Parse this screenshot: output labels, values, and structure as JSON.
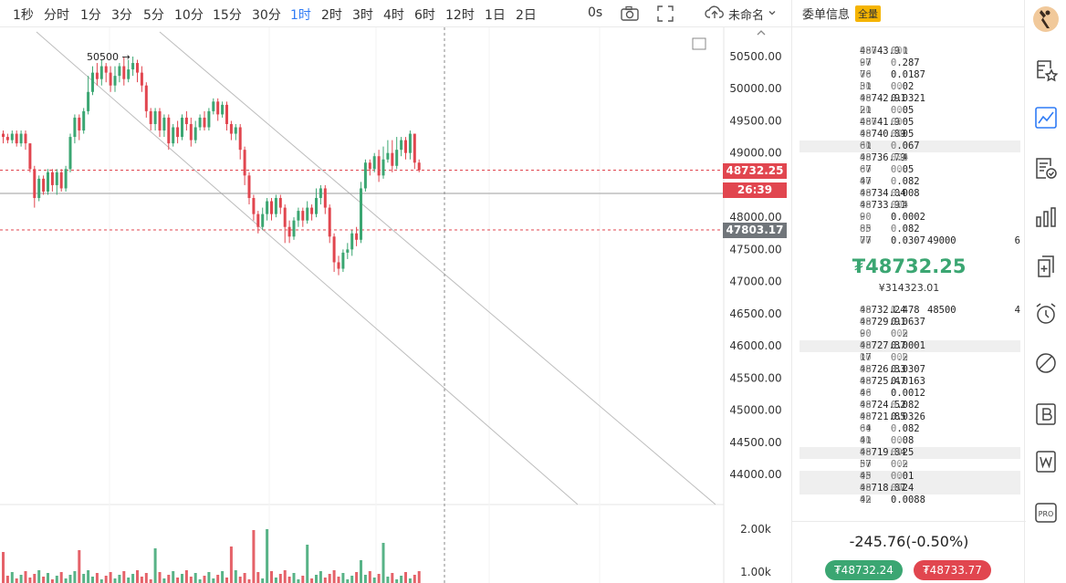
{
  "toolbar": {
    "timeframes": [
      {
        "label": "1秒",
        "active": false
      },
      {
        "label": "分时",
        "active": false
      },
      {
        "label": "1分",
        "active": false
      },
      {
        "label": "3分",
        "active": false
      },
      {
        "label": "5分",
        "active": false
      },
      {
        "label": "10分",
        "active": false
      },
      {
        "label": "15分",
        "active": false
      },
      {
        "label": "30分",
        "active": false
      },
      {
        "label": "1时",
        "active": true
      },
      {
        "label": "2时",
        "active": false
      },
      {
        "label": "3时",
        "active": false
      },
      {
        "label": "4时",
        "active": false
      },
      {
        "label": "6时",
        "active": false
      },
      {
        "label": "12时",
        "active": false
      },
      {
        "label": "1日",
        "active": false
      },
      {
        "label": "2日",
        "active": false
      }
    ],
    "countdown": "0s",
    "layout_name": "未命名",
    "icons": [
      "camera-icon",
      "fullscreen-icon",
      "cloud-upload-icon",
      "chevron-down-icon"
    ]
  },
  "chart": {
    "price_axis_labels": [
      "50500.00",
      "50000.00",
      "49500.00",
      "49000.00",
      "48000.00",
      "47500.00",
      "47000.00",
      "46500.00",
      "46000.00",
      "45500.00",
      "45000.00",
      "44500.00",
      "44000.00"
    ],
    "volume_axis_labels": [
      "2.00k",
      "1.00k"
    ],
    "annotation": "50500 →",
    "current_price_tag": "48732.25",
    "countdown_tag": "26:39",
    "crosshair_price_tag": "47803.17",
    "colors": {
      "up": "#3ba672",
      "down": "#e1464f",
      "crosshair_tag": "#70757a"
    }
  },
  "chart_data": {
    "type": "candlestick",
    "ylim": [
      43700,
      50900
    ],
    "candles": [
      [
        49300,
        49250,
        49350,
        49150
      ],
      [
        49250,
        49200,
        49300,
        49150
      ],
      [
        49200,
        49300,
        49350,
        49150
      ],
      [
        49300,
        49150,
        49350,
        49100
      ],
      [
        49150,
        49300,
        49350,
        49100
      ],
      [
        49300,
        49150,
        49350,
        49050
      ],
      [
        49150,
        48750,
        49150,
        48700
      ],
      [
        48750,
        48300,
        48800,
        48150
      ],
      [
        48300,
        48600,
        48650,
        48250
      ],
      [
        48600,
        48400,
        48650,
        48350
      ],
      [
        48400,
        48700,
        48750,
        48350
      ],
      [
        48700,
        48500,
        48750,
        48400
      ],
      [
        48500,
        48700,
        48750,
        48350
      ],
      [
        48700,
        48450,
        48750,
        48400
      ],
      [
        48450,
        48750,
        48800,
        48400
      ],
      [
        48750,
        49250,
        49300,
        48700
      ],
      [
        49250,
        49550,
        49600,
        49150
      ],
      [
        49550,
        49350,
        49600,
        49200
      ],
      [
        49350,
        49650,
        49700,
        49300
      ],
      [
        49650,
        49950,
        50200,
        49600
      ],
      [
        49950,
        50250,
        50350,
        49900
      ],
      [
        50250,
        50150,
        50400,
        50050
      ],
      [
        50150,
        50350,
        50450,
        50050
      ],
      [
        50350,
        50250,
        50400,
        50100
      ],
      [
        50250,
        50050,
        50350,
        49950
      ],
      [
        50050,
        50200,
        50350,
        49950
      ],
      [
        50200,
        50350,
        50400,
        50100
      ],
      [
        50350,
        50150,
        50500,
        50050
      ],
      [
        50150,
        50300,
        50450,
        50100
      ],
      [
        50300,
        50400,
        50500,
        50200
      ],
      [
        50400,
        50250,
        50450,
        50100
      ],
      [
        50250,
        50050,
        50350,
        49950
      ],
      [
        50050,
        49650,
        50100,
        49550
      ],
      [
        49650,
        49450,
        49700,
        49350
      ],
      [
        49450,
        49650,
        49700,
        49350
      ],
      [
        49650,
        49350,
        49700,
        49250
      ],
      [
        49350,
        49550,
        49600,
        49250
      ],
      [
        49550,
        49150,
        49600,
        49050
      ],
      [
        49150,
        49400,
        49450,
        49100
      ],
      [
        49400,
        49250,
        49500,
        49150
      ],
      [
        49250,
        49550,
        49600,
        49200
      ],
      [
        49550,
        49450,
        49650,
        49350
      ],
      [
        49450,
        49200,
        49550,
        49100
      ],
      [
        49200,
        49400,
        49500,
        49150
      ],
      [
        49400,
        49550,
        49600,
        49350
      ],
      [
        49550,
        49400,
        49650,
        49350
      ],
      [
        49400,
        49650,
        49700,
        49350
      ],
      [
        49650,
        49800,
        49850,
        49600
      ],
      [
        49800,
        49600,
        49850,
        49500
      ],
      [
        49600,
        49750,
        49800,
        49550
      ],
      [
        49750,
        49450,
        49800,
        49350
      ],
      [
        49450,
        49300,
        49500,
        49200
      ],
      [
        49300,
        49400,
        49450,
        49200
      ],
      [
        49400,
        49050,
        49450,
        48900
      ],
      [
        49050,
        48650,
        49100,
        48500
      ],
      [
        48650,
        48300,
        48700,
        48200
      ],
      [
        48300,
        48050,
        48350,
        47950
      ],
      [
        48050,
        47850,
        48100,
        47750
      ],
      [
        47850,
        48050,
        48150,
        47800
      ],
      [
        48050,
        48250,
        48300,
        47950
      ],
      [
        48250,
        48050,
        48300,
        47950
      ],
      [
        48050,
        48300,
        48350,
        48000
      ],
      [
        48300,
        48150,
        48350,
        48050
      ],
      [
        48150,
        47850,
        48200,
        47600
      ],
      [
        47850,
        47700,
        47950,
        47600
      ],
      [
        47700,
        47950,
        48000,
        47650
      ],
      [
        47950,
        48100,
        48150,
        47850
      ],
      [
        48100,
        47950,
        48150,
        47850
      ],
      [
        47950,
        48150,
        48250,
        47900
      ],
      [
        48150,
        48050,
        48200,
        47950
      ],
      [
        48050,
        48300,
        48450,
        48000
      ],
      [
        48300,
        48450,
        48500,
        48200
      ],
      [
        48450,
        48150,
        48500,
        48050
      ],
      [
        48150,
        47700,
        48200,
        47600
      ],
      [
        47700,
        47300,
        47750,
        47150
      ],
      [
        47300,
        47200,
        47400,
        47100
      ],
      [
        47200,
        47450,
        47500,
        47150
      ],
      [
        47450,
        47500,
        47600,
        47350
      ],
      [
        47500,
        47750,
        47800,
        47400
      ],
      [
        47750,
        47650,
        47850,
        47550
      ],
      [
        47650,
        48450,
        48550,
        47600
      ],
      [
        48450,
        48850,
        48900,
        48400
      ],
      [
        48850,
        48750,
        48900,
        48650
      ],
      [
        48750,
        48950,
        49000,
        48700
      ],
      [
        48950,
        48650,
        49050,
        48550
      ],
      [
        48650,
        48900,
        49100,
        48600
      ],
      [
        48900,
        49000,
        49200,
        48850
      ],
      [
        49000,
        48800,
        49200,
        48700
      ],
      [
        48800,
        49050,
        49250,
        48750
      ],
      [
        49050,
        49200,
        49250,
        48950
      ],
      [
        49200,
        49000,
        49250,
        48900
      ],
      [
        49000,
        49300,
        49350,
        48900
      ],
      [
        49300,
        48850,
        49300,
        48750
      ],
      [
        48850,
        48732,
        48900,
        48700
      ]
    ]
  },
  "book": {
    "title": "委单信息",
    "badge": "全量",
    "asks": [
      {
        "p_main": "48743.9",
        "p_dim": "900",
        "q_main": "0.1",
        "q_dim": "000",
        "hl": false
      },
      {
        "p_main": "97",
        "p_dim": "00",
        "q_main": "0.287",
        "q_dim": "0",
        "hl": false
      },
      {
        "p_main": "76",
        "p_dim": "00",
        "q_main": "0.0187",
        "q_dim": "",
        "hl": false
      },
      {
        "p_main": "31",
        "p_dim": "00",
        "q_main": "0.02",
        "q_dim": "00",
        "hl": false
      },
      {
        "p_main": "48742.91",
        "p_dim": "00",
        "q_main": "0.0321",
        "q_dim": "",
        "hl": false
      },
      {
        "p_main": "21",
        "p_dim": "00",
        "q_main": "0.05",
        "q_dim": "00",
        "hl": false
      },
      {
        "p_main": "48741.9",
        "p_dim": "900",
        "q_main": "0.05",
        "q_dim": "00",
        "hl": false
      },
      {
        "p_main": "48740.89",
        "p_dim": "00",
        "q_main": "0.05",
        "q_dim": "00",
        "hl": false
      },
      {
        "p_main": "61",
        "p_dim": "00",
        "q_main": "0.067",
        "q_dim": "0",
        "hl": true
      },
      {
        "p_main": "48736.79",
        "p_dim": "00",
        "q_main": "0.4",
        "q_dim": "000",
        "hl": false
      },
      {
        "p_main": "67",
        "p_dim": "00",
        "q_main": "0.05",
        "q_dim": "00",
        "hl": false
      },
      {
        "p_main": "47",
        "p_dim": "00",
        "q_main": "0.082",
        "q_dim": "0",
        "hl": false
      },
      {
        "p_main": "48734.04",
        "p_dim": "00",
        "q_main": "0.008",
        "q_dim": "0",
        "hl": false
      },
      {
        "p_main": "48733.91",
        "p_dim": "00",
        "q_main": "0.4",
        "q_dim": "000",
        "hl": false
      },
      {
        "p_main": "90",
        "p_dim": "00",
        "q_main": "0.0002",
        "q_dim": "",
        "hl": false
      },
      {
        "p_main": "85",
        "p_dim": "00",
        "q_main": "0.082",
        "q_dim": "0",
        "hl": false
      },
      {
        "p_main": "77",
        "p_dim": "00",
        "q_main": "0.0307",
        "q_dim": "",
        "hl": false,
        "level": "49000",
        "count": "6"
      }
    ],
    "last_price": "₮48732.25",
    "last_price_cny": "¥314323.01",
    "bids": [
      {
        "p_main": "48732.24",
        "p_dim": "00",
        "q_main": "1.478",
        "q_dim": "0",
        "hl": false,
        "level": "48500",
        "count": "4"
      },
      {
        "p_main": "48729.91",
        "p_dim": "00",
        "q_main": "0.0637",
        "q_dim": "",
        "hl": false
      },
      {
        "p_main": "90",
        "p_dim": "00",
        "q_main": "0.2",
        "q_dim": "000",
        "hl": false
      },
      {
        "p_main": "48727.37",
        "p_dim": "00",
        "q_main": "0.0001",
        "q_dim": "",
        "hl": true
      },
      {
        "p_main": "17",
        "p_dim": "00",
        "q_main": "0.2",
        "q_dim": "000",
        "hl": false
      },
      {
        "p_main": "48726.33",
        "p_dim": "00",
        "q_main": "0.0307",
        "q_dim": "",
        "hl": false
      },
      {
        "p_main": "48725.47",
        "p_dim": "00",
        "q_main": "0.0163",
        "q_dim": "",
        "hl": false
      },
      {
        "p_main": "46",
        "p_dim": "00",
        "q_main": "0.0012",
        "q_dim": "",
        "hl": false
      },
      {
        "p_main": "48724.52",
        "p_dim": "00",
        "q_main": "0.082",
        "q_dim": "0",
        "hl": false
      },
      {
        "p_main": "48721.85",
        "p_dim": "00",
        "q_main": "0.0326",
        "q_dim": "",
        "hl": false
      },
      {
        "p_main": "64",
        "p_dim": "00",
        "q_main": "0.082",
        "q_dim": "0",
        "hl": false
      },
      {
        "p_main": "41",
        "p_dim": "00",
        "q_main": "0.08",
        "q_dim": "00",
        "hl": false
      },
      {
        "p_main": "48719.84",
        "p_dim": "00",
        "q_main": "0.25",
        "q_dim": "00",
        "hl": true
      },
      {
        "p_main": "57",
        "p_dim": "00",
        "q_main": "0.2",
        "q_dim": "000",
        "hl": false
      },
      {
        "p_main": "45",
        "p_dim": "00",
        "q_main": "0.01",
        "q_dim": "00",
        "hl": true
      },
      {
        "p_main": "48718.87",
        "p_dim": "00",
        "q_main": "0.24",
        "q_dim": "00",
        "hl": true
      },
      {
        "p_main": "42",
        "p_dim": "00",
        "q_main": "0.0088",
        "q_dim": "",
        "hl": false
      }
    ],
    "change": "-245.76(-0.50%)",
    "buy_price": "₮48732.24",
    "sell_price": "₮48733.77"
  },
  "rail": {
    "icons": [
      "avatar",
      "watchlist-star-icon",
      "chart-icon",
      "checklist-icon",
      "bar-chart-icon",
      "add-page-icon",
      "alarm-clock-icon",
      "drawing-icon",
      "exchange-b-icon",
      "w-icon",
      "pro-icon"
    ]
  }
}
